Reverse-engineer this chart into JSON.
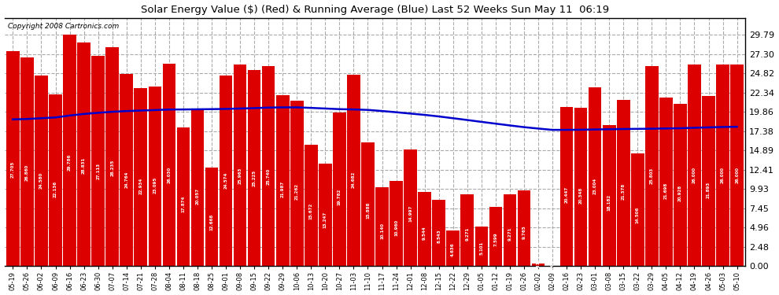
{
  "title": "Solar Energy Value ($) (Red) & Running Average (Blue) Last 52 Weeks Sun May 11  06:19",
  "copyright": "Copyright 2008 Cartronics.com",
  "bar_color": "#dd0000",
  "line_color": "#0000cc",
  "bg_color": "#ffffff",
  "plot_bg_color": "#ffffff",
  "grid_color": "#aaaaaa",
  "yticks": [
    0.0,
    2.48,
    4.96,
    7.45,
    9.93,
    12.41,
    14.89,
    17.38,
    19.86,
    22.34,
    24.82,
    27.3,
    29.79
  ],
  "ylim": [
    0,
    32.0
  ],
  "dates": [
    "05-19",
    "05-26",
    "06-02",
    "06-09",
    "06-16",
    "06-23",
    "06-30",
    "07-07",
    "07-14",
    "07-21",
    "07-28",
    "08-04",
    "08-11",
    "08-18",
    "08-25",
    "09-01",
    "09-08",
    "09-15",
    "09-22",
    "09-29",
    "10-06",
    "10-13",
    "10-20",
    "10-27",
    "11-03",
    "11-10",
    "11-17",
    "11-24",
    "12-01",
    "12-08",
    "12-15",
    "12-22",
    "12-29",
    "01-05",
    "01-12",
    "01-19",
    "01-26",
    "02-02",
    "02-09",
    "02-16",
    "02-23",
    "03-01",
    "03-08",
    "03-15",
    "03-22",
    "03-29",
    "04-05",
    "04-12",
    "04-19",
    "04-26",
    "05-03",
    "05-10"
  ],
  "values": [
    27.705,
    26.86,
    24.58,
    22.136,
    29.786,
    28.831,
    27.113,
    28.235,
    24.764,
    22.934,
    23.095,
    26.03,
    17.874,
    20.057,
    12.668,
    24.574,
    25.963,
    25.225,
    25.74,
    21.987,
    21.262,
    15.672,
    13.247,
    19.782,
    24.682,
    15.888,
    10.14,
    10.96,
    14.997,
    9.544,
    8.543,
    4.636,
    9.271,
    5.101,
    7.599,
    9.271,
    9.765,
    0.317,
    0.0,
    20.447,
    20.348,
    23.004,
    18.182,
    21.378,
    14.506,
    25.803,
    21.698,
    20.928,
    26.0,
    21.893,
    26.0,
    26.0
  ],
  "running_avg": [
    18.9,
    18.95,
    19.05,
    19.15,
    19.4,
    19.6,
    19.75,
    19.88,
    19.97,
    20.04,
    20.1,
    20.17,
    20.18,
    20.2,
    20.22,
    20.25,
    20.3,
    20.35,
    20.42,
    20.45,
    20.45,
    20.38,
    20.3,
    20.22,
    20.18,
    20.12,
    19.98,
    19.82,
    19.65,
    19.48,
    19.28,
    19.05,
    18.82,
    18.58,
    18.35,
    18.12,
    17.9,
    17.72,
    17.55,
    17.55,
    17.57,
    17.6,
    17.63,
    17.66,
    17.68,
    17.7,
    17.73,
    17.76,
    17.82,
    17.87,
    17.92,
    17.95
  ]
}
